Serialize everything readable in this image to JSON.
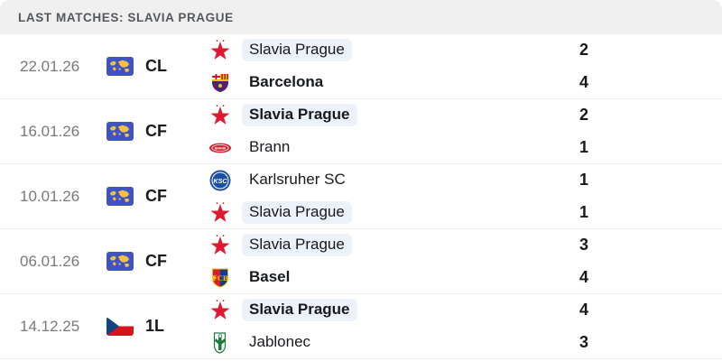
{
  "header": {
    "title": "LAST MATCHES: SLAVIA PRAGUE"
  },
  "colors": {
    "header_bg": "#efeff0",
    "header_text": "#54585d",
    "row_separator": "#ededee",
    "date_text": "#75797e",
    "primary_text": "#16191d",
    "team_highlight_bg": "#edf1fa",
    "slavia_red": "#e0192e",
    "world_flag_blue": "#4053c4",
    "world_flag_map_yellow": "#f0c33c",
    "czech_flag_red": "#d7141a",
    "czech_flag_blue": "#11457e"
  },
  "matches": [
    {
      "date": "22.01.26",
      "competition": {
        "code": "CL",
        "flag": "world-flag-icon"
      },
      "teams": [
        {
          "name": "Slavia Prague",
          "logo": "slavia-prague-logo",
          "score": "2",
          "winner": false,
          "highlighted": true
        },
        {
          "name": "Barcelona",
          "logo": "barcelona-logo",
          "score": "4",
          "winner": true,
          "highlighted": false
        }
      ]
    },
    {
      "date": "16.01.26",
      "competition": {
        "code": "CF",
        "flag": "world-flag-icon"
      },
      "teams": [
        {
          "name": "Slavia Prague",
          "logo": "slavia-prague-logo",
          "score": "2",
          "winner": true,
          "highlighted": true
        },
        {
          "name": "Brann",
          "logo": "brann-logo",
          "score": "1",
          "winner": false,
          "highlighted": false
        }
      ]
    },
    {
      "date": "10.01.26",
      "competition": {
        "code": "CF",
        "flag": "world-flag-icon"
      },
      "teams": [
        {
          "name": "Karlsruher SC",
          "logo": "karlsruher-sc-logo",
          "score": "1",
          "winner": false,
          "highlighted": false
        },
        {
          "name": "Slavia Prague",
          "logo": "slavia-prague-logo",
          "score": "1",
          "winner": false,
          "highlighted": true
        }
      ]
    },
    {
      "date": "06.01.26",
      "competition": {
        "code": "CF",
        "flag": "world-flag-icon"
      },
      "teams": [
        {
          "name": "Slavia Prague",
          "logo": "slavia-prague-logo",
          "score": "3",
          "winner": false,
          "highlighted": true
        },
        {
          "name": "Basel",
          "logo": "basel-logo",
          "score": "4",
          "winner": true,
          "highlighted": false
        }
      ]
    },
    {
      "date": "14.12.25",
      "competition": {
        "code": "1L",
        "flag": "czech-flag-icon"
      },
      "teams": [
        {
          "name": "Slavia Prague",
          "logo": "slavia-prague-logo",
          "score": "4",
          "winner": true,
          "highlighted": true
        },
        {
          "name": "Jablonec",
          "logo": "jablonec-logo",
          "score": "3",
          "winner": false,
          "highlighted": false
        }
      ]
    }
  ]
}
